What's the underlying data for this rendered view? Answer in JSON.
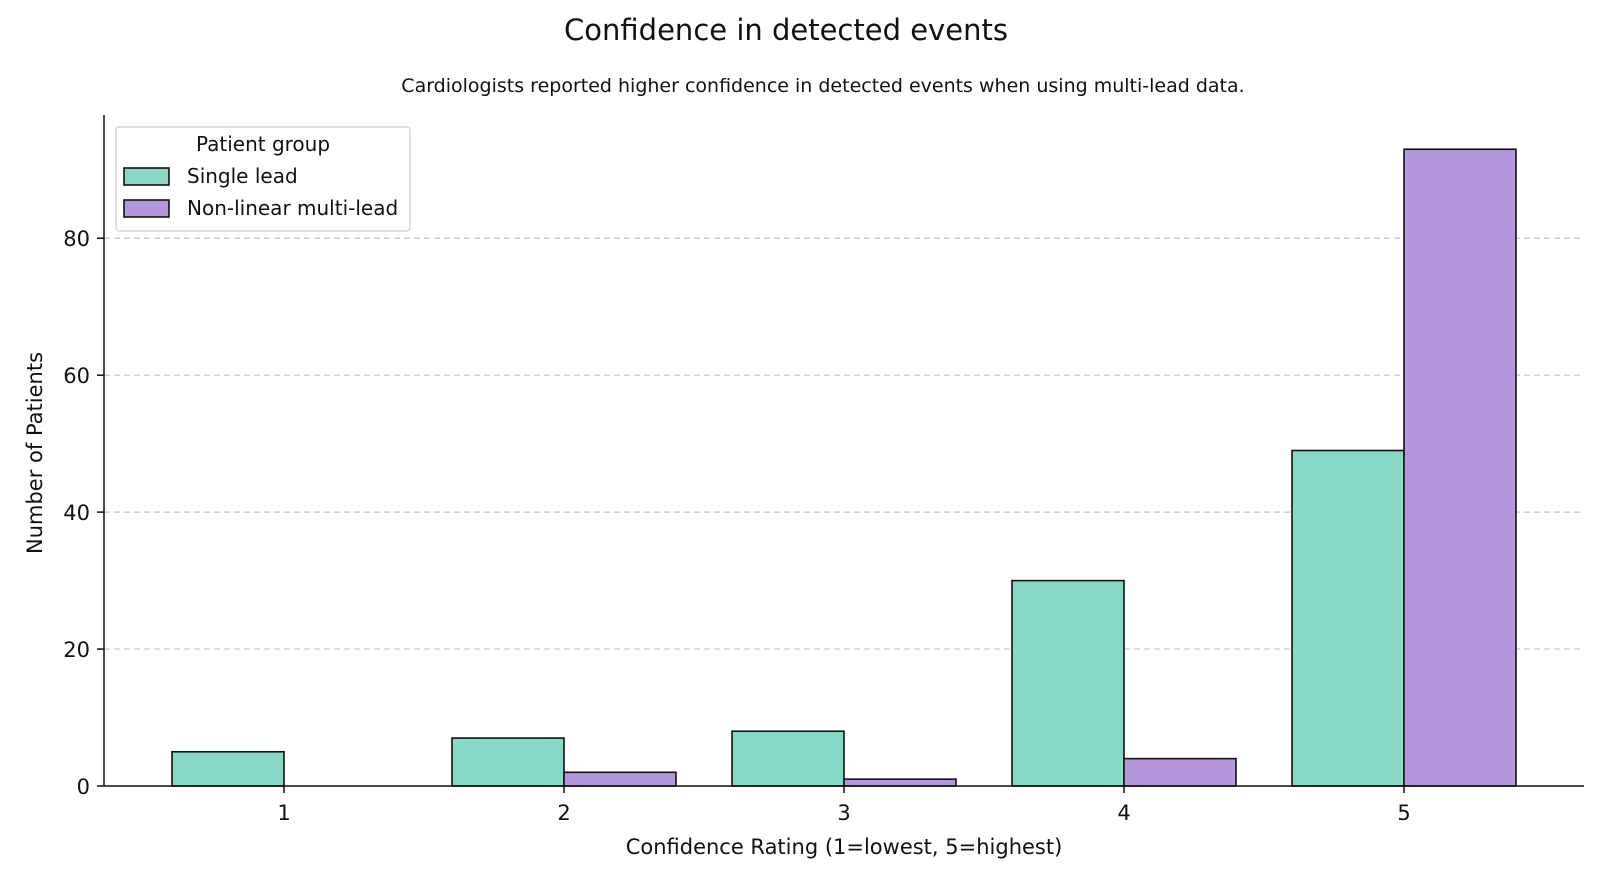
{
  "chart_data": {
    "type": "bar",
    "title": "Confidence in detected events",
    "subtitle": "Cardiologists reported higher confidence in detected events when using multi-lead data.",
    "xlabel": "Confidence Rating (1=lowest, 5=highest)",
    "ylabel": "Number of Patients",
    "categories": [
      "1",
      "2",
      "3",
      "4",
      "5"
    ],
    "ylim": [
      0,
      98
    ],
    "yticks": [
      0,
      20,
      40,
      60,
      80
    ],
    "grid": "y-dashed",
    "legend": {
      "title": "Patient group",
      "placement": "top-left"
    },
    "series": [
      {
        "name": "Single lead",
        "values": [
          5,
          7,
          8,
          30,
          49
        ],
        "color": "#88d8c7"
      },
      {
        "name": "Non-linear multi-lead",
        "values": [
          0,
          2,
          1,
          4,
          93
        ],
        "color": "#b396dc"
      }
    ]
  }
}
